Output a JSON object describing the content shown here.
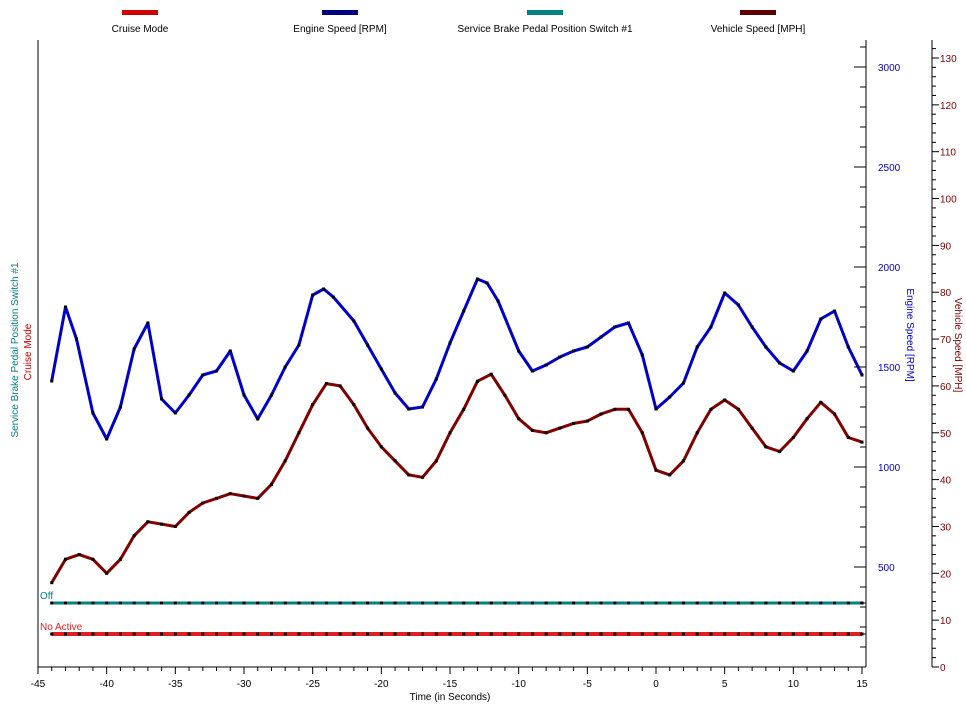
{
  "chart_data": {
    "type": "line",
    "x_label": "Time (in Seconds)",
    "x_ticks": [
      -45,
      -40,
      -35,
      -30,
      -25,
      -20,
      -15,
      -10,
      -5,
      0,
      5,
      10,
      15
    ],
    "xlim": [
      -45,
      15
    ],
    "axes": {
      "engine_speed": {
        "label": "Engine Speed [RPM]",
        "ticks": [
          500,
          1000,
          1500,
          2000,
          2500,
          3000
        ],
        "range": [
          0,
          3000
        ],
        "color": "#0000cc"
      },
      "vehicle_speed": {
        "label": "Vehicle Speed [MPH]",
        "ticks": [
          0,
          10,
          20,
          30,
          40,
          50,
          60,
          70,
          80,
          90,
          100,
          110,
          120,
          130
        ],
        "range": [
          0,
          130
        ],
        "color": "#800000"
      },
      "service_brake": {
        "label": "Service Brake Pedal Position Switch #1",
        "ticks": [],
        "color": "#008080"
      },
      "cruise_mode": {
        "label": "Cruise Mode",
        "ticks": [],
        "color": "#cc0000"
      }
    },
    "series": [
      {
        "name": "Cruise Mode",
        "color": "#e02020",
        "axis": "cruise_mode",
        "state_label": "No Active",
        "x": [
          -44,
          -43,
          -42,
          -41,
          -40,
          -39,
          -38,
          -37,
          -36,
          -35,
          -34,
          -33,
          -32,
          -31,
          -30,
          -29,
          -28,
          -27,
          -26,
          -25,
          -24,
          -23,
          -22,
          -21,
          -20,
          -19,
          -18,
          -17,
          -16,
          -15,
          -14,
          -13,
          -12,
          -11,
          -10,
          -9,
          -8,
          -7,
          -6,
          -5,
          -4,
          -3,
          -2,
          -1,
          0,
          1,
          2,
          3,
          4,
          5,
          6,
          7,
          8,
          9,
          10,
          11,
          12,
          13,
          14,
          15
        ],
        "y": [
          0,
          0,
          0,
          0,
          0,
          0,
          0,
          0,
          0,
          0,
          0,
          0,
          0,
          0,
          0,
          0,
          0,
          0,
          0,
          0,
          0,
          0,
          0,
          0,
          0,
          0,
          0,
          0,
          0,
          0,
          0,
          0,
          0,
          0,
          0,
          0,
          0,
          0,
          0,
          0,
          0,
          0,
          0,
          0,
          0,
          0,
          0,
          0,
          0,
          0,
          0,
          0,
          0,
          0,
          0,
          0,
          0,
          0,
          0,
          0
        ]
      },
      {
        "name": "Engine Speed [RPM]",
        "color": "#0000cc",
        "axis": "engine_speed",
        "x": [
          -44,
          -43,
          -42.2,
          -41,
          -40,
          -39,
          -38,
          -37,
          -36,
          -35,
          -34,
          -33,
          -32,
          -31,
          -30,
          -29,
          -28,
          -27,
          -26,
          -25,
          -24.2,
          -23.5,
          -22,
          -21,
          -20,
          -19,
          -18,
          -17,
          -16,
          -15,
          -14,
          -13,
          -12.3,
          -11.5,
          -10,
          -9,
          -8,
          -7,
          -6,
          -5,
          -4,
          -3,
          -2,
          -1,
          0,
          1,
          2,
          3,
          4,
          5,
          6,
          7,
          8,
          9,
          10,
          11,
          12,
          13,
          14,
          15
        ],
        "y": [
          1430,
          1800,
          1640,
          1270,
          1140,
          1300,
          1590,
          1720,
          1340,
          1270,
          1360,
          1460,
          1480,
          1580,
          1360,
          1240,
          1360,
          1500,
          1610,
          1860,
          1890,
          1850,
          1730,
          1610,
          1490,
          1370,
          1290,
          1300,
          1440,
          1620,
          1780,
          1940,
          1920,
          1830,
          1580,
          1480,
          1510,
          1550,
          1580,
          1600,
          1650,
          1700,
          1720,
          1560,
          1290,
          1350,
          1420,
          1600,
          1700,
          1870,
          1810,
          1700,
          1600,
          1520,
          1480,
          1580,
          1740,
          1780,
          1600,
          1460
        ]
      },
      {
        "name": "Service Brake Pedal Position Switch #1",
        "color": "#008080",
        "axis": "service_brake",
        "state_label": "Off",
        "x": [
          -44,
          -43,
          -42,
          -41,
          -40,
          -39,
          -38,
          -37,
          -36,
          -35,
          -34,
          -33,
          -32,
          -31,
          -30,
          -29,
          -28,
          -27,
          -26,
          -25,
          -24,
          -23,
          -22,
          -21,
          -20,
          -19,
          -18,
          -17,
          -16,
          -15,
          -14,
          -13,
          -12,
          -11,
          -10,
          -9,
          -8,
          -7,
          -6,
          -5,
          -4,
          -3,
          -2,
          -1,
          0,
          1,
          2,
          3,
          4,
          5,
          6,
          7,
          8,
          9,
          10,
          11,
          12,
          13,
          14,
          15
        ],
        "y": [
          0,
          0,
          0,
          0,
          0,
          0,
          0,
          0,
          0,
          0,
          0,
          0,
          0,
          0,
          0,
          0,
          0,
          0,
          0,
          0,
          0,
          0,
          0,
          0,
          0,
          0,
          0,
          0,
          0,
          0,
          0,
          0,
          0,
          0,
          0,
          0,
          0,
          0,
          0,
          0,
          0,
          0,
          0,
          0,
          0,
          0,
          0,
          0,
          0,
          0,
          0,
          0,
          0,
          0,
          0,
          0,
          0,
          0,
          0,
          0
        ]
      },
      {
        "name": "Vehicle Speed [MPH]",
        "color": "#800000",
        "axis": "vehicle_speed",
        "x": [
          -44,
          -43,
          -42,
          -41,
          -40,
          -39,
          -38,
          -37,
          -36,
          -35,
          -34,
          -33,
          -32,
          -31,
          -30,
          -29,
          -28,
          -27,
          -26,
          -25,
          -24,
          -23,
          -22,
          -21,
          -20,
          -19,
          -18,
          -17,
          -16,
          -15,
          -14,
          -13,
          -12,
          -11,
          -10,
          -9,
          -8,
          -7,
          -6,
          -5,
          -4,
          -3,
          -2,
          -1,
          0,
          1,
          2,
          3,
          4,
          5,
          6,
          7,
          8,
          9,
          10,
          11,
          12,
          13,
          14,
          15
        ],
        "y": [
          18,
          23,
          24,
          23,
          20,
          23,
          28,
          31,
          30.5,
          30,
          33,
          35,
          36,
          37,
          36.5,
          36,
          39,
          44,
          50,
          56,
          60.5,
          60,
          56,
          51,
          47,
          44,
          41,
          40.5,
          44,
          50,
          55,
          61,
          62.5,
          58,
          53,
          50.5,
          50,
          51,
          52,
          52.5,
          54,
          55,
          55,
          50,
          42,
          41,
          44,
          50,
          55,
          57,
          55,
          51,
          47,
          46,
          49,
          53,
          56.5,
          54,
          49,
          48
        ]
      }
    ],
    "legend": [
      {
        "name": "Cruise Mode",
        "color": "#cc0000"
      },
      {
        "name": "Engine Speed [RPM]",
        "color": "#000080"
      },
      {
        "name": "Service Brake Pedal Position Switch #1",
        "color": "#008080"
      },
      {
        "name": "Vehicle Speed [MPH]",
        "color": "#5c0000"
      }
    ],
    "legend_position": "top",
    "grid": false
  }
}
